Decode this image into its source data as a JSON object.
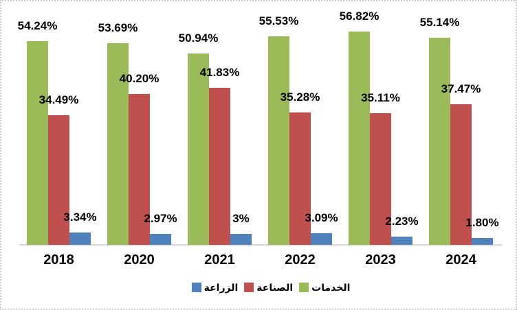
{
  "chart_data": {
    "type": "bar",
    "title": "",
    "xlabel": "",
    "ylabel": "",
    "grid": false,
    "ylim": [
      0,
      60
    ],
    "value_unit": "%",
    "categories": [
      "2018",
      "2020",
      "2021",
      "2022",
      "2023",
      "2024"
    ],
    "series": [
      {
        "id": "services",
        "name": "الخدمات",
        "color": "#9BBB59",
        "values": [
          54.24,
          53.69,
          50.94,
          55.53,
          56.82,
          55.14
        ],
        "labels": [
          "54.24%",
          "53.69%",
          "50.94%",
          "55.53%",
          "56.82%",
          "55.14%"
        ]
      },
      {
        "id": "industry",
        "name": "الصناعة",
        "color": "#C0504D",
        "values": [
          34.49,
          40.2,
          41.83,
          35.28,
          35.11,
          37.47
        ],
        "labels": [
          "34.49%",
          "40.20%",
          "41.83%",
          "35.28%",
          "35.11%",
          "37.47%"
        ]
      },
      {
        "id": "agriculture",
        "name": "الزراعة",
        "color": "#4F81BD",
        "values": [
          3.34,
          2.97,
          3.0,
          3.09,
          2.23,
          1.8
        ],
        "labels": [
          "3.34%",
          "2.97%",
          "3%",
          "3.09%",
          "2.23%",
          "1.80%"
        ]
      }
    ],
    "legend": {
      "position": "bottom",
      "items": [
        {
          "id": "agriculture",
          "label": "الزراعة",
          "color": "#4F81BD"
        },
        {
          "id": "industry",
          "label": "الصناعة",
          "color": "#C0504D"
        },
        {
          "id": "services",
          "label": "الخدمات",
          "color": "#9BBB59"
        }
      ]
    },
    "axis": {
      "baseline_color": "#D6D6D6",
      "label_color": "#000000"
    }
  }
}
